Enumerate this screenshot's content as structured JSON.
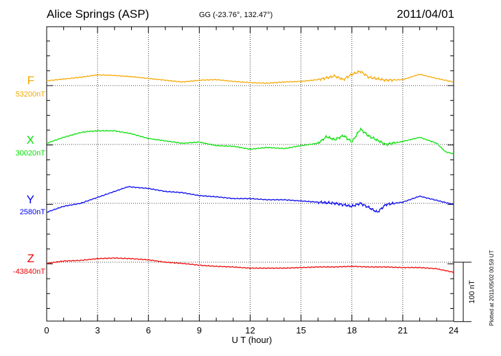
{
  "header": {
    "station": "Alice Springs (ASP)",
    "coords": "GG (-23.76°, 132.47°)",
    "date": "2011/04/01"
  },
  "plotted_note": "Plotted at 2011/05/02 00:59 UT",
  "chart_data": {
    "type": "line",
    "title": "Alice Springs (ASP)",
    "xlabel": "U T (hour)",
    "ylabel": "",
    "xlim": [
      0,
      24
    ],
    "x_ticks": [
      0,
      3,
      6,
      9,
      12,
      15,
      18,
      21,
      24
    ],
    "scale_bar": {
      "label": "100 nT",
      "value_nT": 100
    },
    "grid": true,
    "series": [
      {
        "name": "F",
        "baseline_label": "53200nT",
        "baseline_nT": 53200,
        "color": "#f5a700",
        "points": [
          [
            0,
            53208
          ],
          [
            1,
            53211
          ],
          [
            2,
            53214
          ],
          [
            3,
            53218
          ],
          [
            4,
            53217
          ],
          [
            5,
            53215
          ],
          [
            6,
            53212
          ],
          [
            7,
            53209
          ],
          [
            8,
            53206
          ],
          [
            9,
            53209
          ],
          [
            10,
            53210
          ],
          [
            11,
            53207
          ],
          [
            12,
            53205
          ],
          [
            13,
            53204
          ],
          [
            14,
            53206
          ],
          [
            15,
            53207
          ],
          [
            16,
            53210
          ],
          [
            16.5,
            53213
          ],
          [
            17,
            53216
          ],
          [
            17.5,
            53210
          ],
          [
            18,
            53219
          ],
          [
            18.5,
            53224
          ],
          [
            19,
            53214
          ],
          [
            20,
            53209
          ],
          [
            21,
            53210
          ],
          [
            22,
            53219
          ],
          [
            23,
            53212
          ],
          [
            24,
            53206
          ]
        ]
      },
      {
        "name": "X",
        "baseline_label": "30020nT",
        "baseline_nT": 30020,
        "color": "#00e000",
        "points": [
          [
            0,
            30022
          ],
          [
            1,
            30032
          ],
          [
            2,
            30040
          ],
          [
            2.5,
            30042
          ],
          [
            3,
            30043
          ],
          [
            4,
            30043
          ],
          [
            5,
            30038
          ],
          [
            6,
            30030
          ],
          [
            7,
            30026
          ],
          [
            8,
            30022
          ],
          [
            9,
            30024
          ],
          [
            10,
            30018
          ],
          [
            11,
            30017
          ],
          [
            12,
            30012
          ],
          [
            13,
            30015
          ],
          [
            14,
            30013
          ],
          [
            15,
            30018
          ],
          [
            16,
            30022
          ],
          [
            16.5,
            30033
          ],
          [
            17,
            30028
          ],
          [
            17.5,
            30035
          ],
          [
            18,
            30024
          ],
          [
            18.5,
            30046
          ],
          [
            19,
            30034
          ],
          [
            20,
            30020
          ],
          [
            21,
            30025
          ],
          [
            22,
            30032
          ],
          [
            23,
            30022
          ],
          [
            23.5,
            30008
          ],
          [
            24,
            30004
          ]
        ]
      },
      {
        "name": "Y",
        "baseline_label": "2580nT",
        "baseline_nT": 2580,
        "color": "#0000ee",
        "points": [
          [
            0,
            2565
          ],
          [
            1,
            2575
          ],
          [
            2,
            2580
          ],
          [
            3,
            2590
          ],
          [
            4,
            2600
          ],
          [
            4.8,
            2608
          ],
          [
            6,
            2605
          ],
          [
            7,
            2600
          ],
          [
            8,
            2598
          ],
          [
            9,
            2593
          ],
          [
            10,
            2591
          ],
          [
            11,
            2588
          ],
          [
            12,
            2588
          ],
          [
            13,
            2586
          ],
          [
            14,
            2586
          ],
          [
            15,
            2584
          ],
          [
            16,
            2582
          ],
          [
            17,
            2580
          ],
          [
            18,
            2575
          ],
          [
            18.5,
            2580
          ],
          [
            19,
            2573
          ],
          [
            19.5,
            2565
          ],
          [
            20,
            2578
          ],
          [
            21,
            2582
          ],
          [
            22,
            2592
          ],
          [
            23,
            2585
          ],
          [
            24,
            2578
          ]
        ]
      },
      {
        "name": "Z",
        "baseline_label": "-43840nT",
        "baseline_nT": -43840,
        "color": "#ee0000",
        "points": [
          [
            0,
            -43842
          ],
          [
            1,
            -43838
          ],
          [
            2,
            -43837
          ],
          [
            3,
            -43834
          ],
          [
            4,
            -43833
          ],
          [
            5,
            -43834
          ],
          [
            6,
            -43836
          ],
          [
            7,
            -43840
          ],
          [
            8,
            -43842
          ],
          [
            9,
            -43845
          ],
          [
            10,
            -43847
          ],
          [
            11,
            -43848
          ],
          [
            12,
            -43850
          ],
          [
            13,
            -43850
          ],
          [
            14,
            -43850
          ],
          [
            15,
            -43849
          ],
          [
            16,
            -43848
          ],
          [
            17,
            -43848
          ],
          [
            18,
            -43847
          ],
          [
            19,
            -43848
          ],
          [
            20,
            -43848
          ],
          [
            21,
            -43849
          ],
          [
            22,
            -43849
          ],
          [
            23,
            -43851
          ],
          [
            24,
            -43857
          ]
        ]
      }
    ]
  }
}
